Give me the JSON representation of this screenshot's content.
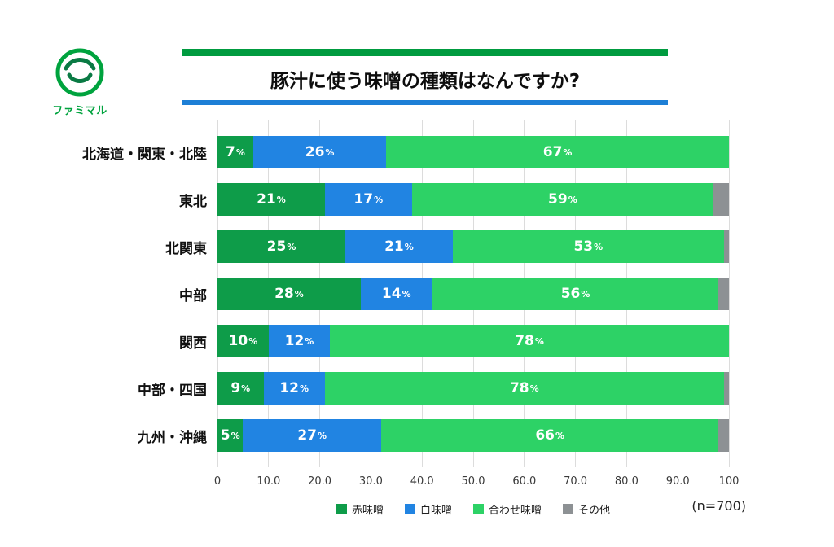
{
  "logo": {
    "text": "ファミマル"
  },
  "chart_data": {
    "type": "bar",
    "stacked": true,
    "orientation": "horizontal",
    "title": "豚汁に使う味噌の種類はなんですか?",
    "categories": [
      "北海道・関東・北陸",
      "東北",
      "北関東",
      "中部",
      "関西",
      "中部・四国",
      "九州・沖縄"
    ],
    "series": [
      {
        "name": "赤味噌",
        "color": "#0e9c49",
        "values": [
          7,
          21,
          25,
          28,
          10,
          9,
          5
        ]
      },
      {
        "name": "白味噌",
        "color": "#2184e2",
        "values": [
          26,
          17,
          21,
          14,
          12,
          12,
          27
        ]
      },
      {
        "name": "合わせ味噌",
        "color": "#2dd266",
        "values": [
          67,
          59,
          53,
          56,
          78,
          78,
          66
        ]
      },
      {
        "name": "その他",
        "color": "#8d9194",
        "values": [
          0,
          3,
          1,
          2,
          0,
          1,
          2
        ]
      }
    ],
    "xlim": [
      0,
      100
    ],
    "x_ticks": [
      "0",
      "10.0",
      "20.0",
      "30.0",
      "40.0",
      "50.0",
      "60.0",
      "70.0",
      "80.0",
      "90.0",
      "100"
    ],
    "label_color": "#ffffff",
    "legend_position": "bottom",
    "note": "(n=700)"
  }
}
